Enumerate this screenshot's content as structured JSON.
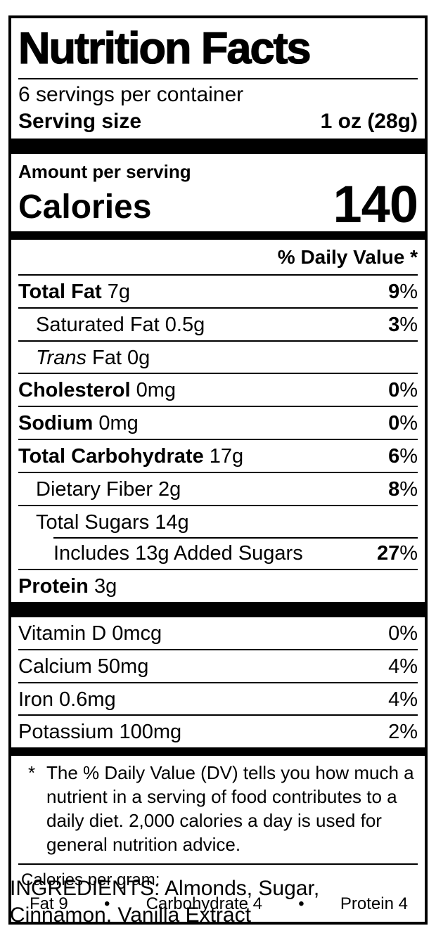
{
  "colors": {
    "ink": "#000000",
    "paper": "#ffffff"
  },
  "label": {
    "title": "Nutrition Facts",
    "servings_per_container": "6 servings per container",
    "serving_size_label": "Serving size",
    "serving_size_value": "1 oz (28g)",
    "amount_per_serving": "Amount per serving",
    "calories_label": "Calories",
    "calories_value": "140",
    "daily_value_header": "% Daily Value *",
    "nutrient_rows": [
      {
        "bold": "Total Fat",
        "text": " 7g",
        "percent": "9",
        "indent": 0,
        "sep": "none"
      },
      {
        "text": "Saturated Fat 0.5g",
        "percent": "3",
        "indent": 1,
        "sep": "full"
      },
      {
        "italic": "Trans",
        "text": " Fat 0g",
        "percent": null,
        "indent": 1,
        "sep": "full"
      },
      {
        "bold": "Cholesterol",
        "text": " 0mg",
        "percent": "0",
        "indent": 0,
        "sep": "full"
      },
      {
        "bold": "Sodium",
        "text": " 0mg",
        "percent": "0",
        "indent": 0,
        "sep": "full"
      },
      {
        "bold": "Total Carbohydrate",
        "text": " 17g",
        "percent": "6",
        "indent": 0,
        "sep": "full"
      },
      {
        "text": "Dietary Fiber 2g",
        "percent": "8",
        "indent": 1,
        "sep": "full"
      },
      {
        "text": "Total Sugars 14g",
        "percent": null,
        "indent": 1,
        "sep": "full"
      },
      {
        "text": "Includes 13g Added Sugars",
        "percent": "27",
        "indent": 2,
        "sep": "partial"
      },
      {
        "bold": "Protein",
        "text": " 3g",
        "percent": null,
        "indent": 0,
        "sep": "full"
      }
    ],
    "vitamin_rows": [
      {
        "text": "Vitamin D 0mcg",
        "percent": "0",
        "sep": "none"
      },
      {
        "text": "Calcium 50mg",
        "percent": "4",
        "sep": "full"
      },
      {
        "text": "Iron 0.6mg",
        "percent": "4",
        "sep": "full"
      },
      {
        "text": "Potassium 100mg",
        "percent": "2",
        "sep": "full"
      }
    ],
    "footnote_marker": "*",
    "footnote_text": "The % Daily Value (DV) tells you how much a nutrient in a serving of food contributes to a daily diet. 2,000 calories a day is used for general nutrition advice.",
    "calories_per_gram": {
      "label": "Calories per gram:",
      "bullet": "•",
      "items": [
        "Fat 9",
        "Carbohydrate 4",
        "Protein 4"
      ]
    }
  },
  "ingredients": "INGREDIENTS: Almonds, Sugar, Cinnamon, Vanilla Extract"
}
